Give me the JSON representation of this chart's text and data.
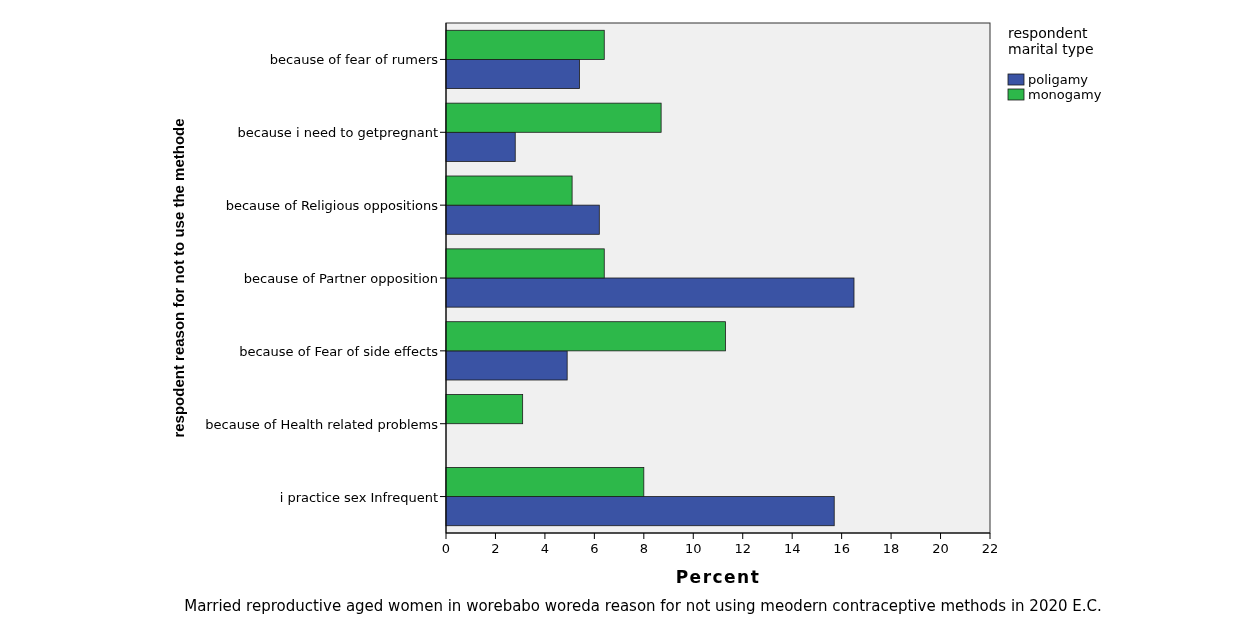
{
  "chart_data": {
    "type": "bar",
    "orientation": "horizontal",
    "ylabel": "respodent reason for not to use the methode",
    "xlabel": "Percent",
    "legend_title": "respondent marital type",
    "legend": "top right",
    "categories": [
      "because of fear of rumers",
      "because i need to getpregnant",
      "because of Religious oppositions",
      "because of Partner opposition",
      "because of Fear of side effects",
      "because of Health related problems",
      "i practice sex Infrequent"
    ],
    "series": [
      {
        "name": "poligamy",
        "color": "#3a53a4",
        "values": [
          5.4,
          2.8,
          6.2,
          16.5,
          4.9,
          0,
          15.7
        ]
      },
      {
        "name": "monogamy",
        "color": "#2db84a",
        "values": [
          6.4,
          8.7,
          5.1,
          6.4,
          11.3,
          3.1,
          8.0
        ]
      }
    ],
    "xlim": [
      0,
      22
    ],
    "xticks": [
      0,
      2,
      4,
      6,
      8,
      10,
      12,
      14,
      16,
      18,
      20,
      22
    ],
    "grid": false,
    "annotations": [
      "Married reproductive aged women in worebabo woreda reason for not using meodern contraceptive methods in 2020 E.C."
    ]
  }
}
